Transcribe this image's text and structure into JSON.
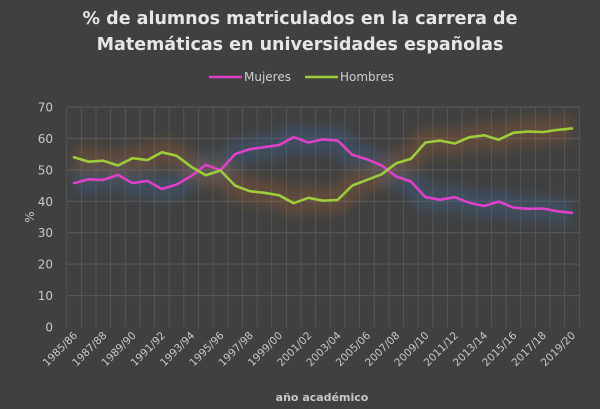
{
  "chart_data": {
    "type": "line",
    "title": "% de alumnos matriculados en la carrera de Matemáticas en universidades españolas",
    "title_lines": [
      "% de alumnos matriculados en la carrera de",
      "Matemáticas en universidades españolas"
    ],
    "xlabel": "año académico",
    "ylabel": "%",
    "ylim": [
      0,
      70
    ],
    "yticks": [
      0,
      10,
      20,
      30,
      40,
      50,
      60,
      70
    ],
    "grid": true,
    "legend_position": "top",
    "categories": [
      "1985/86",
      "1986/87",
      "1987/88",
      "1988/89",
      "1989/90",
      "1990/91",
      "1991/92",
      "1992/93",
      "1993/94",
      "1994/95",
      "1995/96",
      "1996/97",
      "1997/98",
      "1998/99",
      "1999/00",
      "2000/01",
      "2001/02",
      "2002/03",
      "2003/04",
      "2004/05",
      "2005/06",
      "2006/07",
      "2007/08",
      "2008/09",
      "2009/10",
      "2010/11",
      "2011/12",
      "2012/13",
      "2013/14",
      "2014/15",
      "2015/16",
      "2016/17",
      "2017/18",
      "2018/19",
      "2019/20"
    ],
    "xtick_labels": [
      "1985/86",
      "1987/88",
      "1989/90",
      "1991/92",
      "1993/94",
      "1995/96",
      "1997/98",
      "1999/00",
      "2001/02",
      "2003/04",
      "2005/06",
      "2007/08",
      "2009/10",
      "2011/12",
      "2013/14",
      "2015/16",
      "2017/18",
      "2019/20"
    ],
    "series": [
      {
        "name": "Mujeres",
        "color": "#e040c8",
        "values": [
          45.8,
          47.0,
          46.8,
          48.4,
          45.8,
          46.5,
          43.9,
          45.3,
          48.0,
          51.6,
          49.9,
          55.0,
          56.6,
          57.2,
          57.9,
          60.4,
          58.7,
          59.7,
          59.3,
          54.8,
          53.4,
          51.4,
          47.9,
          46.3,
          41.3,
          40.5,
          41.3,
          39.5,
          38.5,
          39.9,
          38.0,
          37.6,
          37.7,
          36.8,
          36.3
        ]
      },
      {
        "name": "Hombres",
        "color": "#9ccc3c",
        "values": [
          54.0,
          52.6,
          52.9,
          51.4,
          53.7,
          53.1,
          55.6,
          54.5,
          51.0,
          48.3,
          49.8,
          45.0,
          43.2,
          42.7,
          41.9,
          39.4,
          41.1,
          40.2,
          40.4,
          45.0,
          46.8,
          48.6,
          52.1,
          53.5,
          58.7,
          59.3,
          58.4,
          60.4,
          61.0,
          59.6,
          61.8,
          62.2,
          62.0,
          62.7,
          63.2
        ]
      }
    ]
  },
  "colors": {
    "background": "#404040",
    "gridline": "#5a5a5a",
    "text": "#c8c8c8",
    "title": "#e6e6e6"
  }
}
